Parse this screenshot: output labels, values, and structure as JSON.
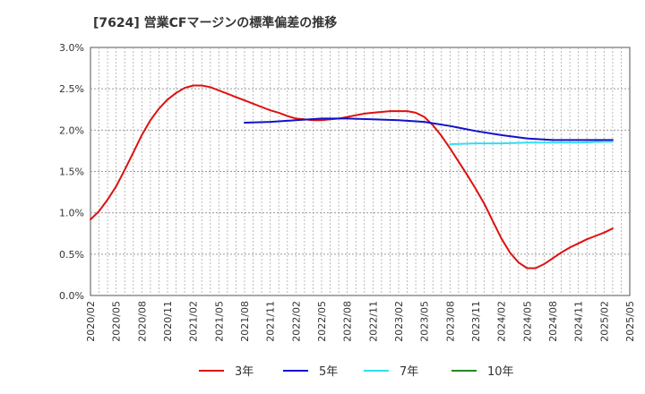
{
  "chart_data": {
    "type": "line",
    "title": "[7624]  営業CFマージンの標準偏差の推移",
    "xlabel": "",
    "ylabel": "",
    "x_ticks": [
      "2020/02",
      "2020/05",
      "2020/08",
      "2020/11",
      "2021/02",
      "2021/05",
      "2021/08",
      "2021/11",
      "2022/02",
      "2022/05",
      "2022/08",
      "2022/11",
      "2023/02",
      "2023/05",
      "2023/08",
      "2023/11",
      "2024/02",
      "2024/05",
      "2024/08",
      "2024/11",
      "2025/02",
      "2025/05"
    ],
    "y_ticks": [
      "0.0%",
      "0.5%",
      "1.0%",
      "1.5%",
      "2.0%",
      "2.5%",
      "3.0%"
    ],
    "ylim": [
      0,
      3.0
    ],
    "grid": true,
    "legend_position": "bottom",
    "series": [
      {
        "name": "3年",
        "color": "#dd1111",
        "points": [
          [
            "2020/02",
            0.92
          ],
          [
            "2020/03",
            1.02
          ],
          [
            "2020/04",
            1.16
          ],
          [
            "2020/05",
            1.32
          ],
          [
            "2020/06",
            1.52
          ],
          [
            "2020/07",
            1.73
          ],
          [
            "2020/08",
            1.94
          ],
          [
            "2020/09",
            2.12
          ],
          [
            "2020/10",
            2.26
          ],
          [
            "2020/11",
            2.37
          ],
          [
            "2020/12",
            2.45
          ],
          [
            "2021/01",
            2.51
          ],
          [
            "2021/02",
            2.54
          ],
          [
            "2021/03",
            2.54
          ],
          [
            "2021/04",
            2.52
          ],
          [
            "2021/05",
            2.48
          ],
          [
            "2021/06",
            2.44
          ],
          [
            "2021/07",
            2.4
          ],
          [
            "2021/08",
            2.36
          ],
          [
            "2021/09",
            2.32
          ],
          [
            "2021/10",
            2.28
          ],
          [
            "2021/11",
            2.24
          ],
          [
            "2021/12",
            2.21
          ],
          [
            "2022/01",
            2.17
          ],
          [
            "2022/02",
            2.14
          ],
          [
            "2022/03",
            2.13
          ],
          [
            "2022/04",
            2.12
          ],
          [
            "2022/05",
            2.12
          ],
          [
            "2022/06",
            2.13
          ],
          [
            "2022/07",
            2.14
          ],
          [
            "2022/08",
            2.16
          ],
          [
            "2022/09",
            2.18
          ],
          [
            "2022/10",
            2.2
          ],
          [
            "2022/11",
            2.21
          ],
          [
            "2022/12",
            2.22
          ],
          [
            "2023/01",
            2.23
          ],
          [
            "2023/02",
            2.23
          ],
          [
            "2023/03",
            2.23
          ],
          [
            "2023/04",
            2.21
          ],
          [
            "2023/05",
            2.16
          ],
          [
            "2023/06",
            2.06
          ],
          [
            "2023/07",
            1.93
          ],
          [
            "2023/08",
            1.78
          ],
          [
            "2023/09",
            1.62
          ],
          [
            "2023/10",
            1.46
          ],
          [
            "2023/11",
            1.29
          ],
          [
            "2023/12",
            1.11
          ],
          [
            "2024/01",
            0.9
          ],
          [
            "2024/02",
            0.69
          ],
          [
            "2024/03",
            0.52
          ],
          [
            "2024/04",
            0.4
          ],
          [
            "2024/05",
            0.33
          ],
          [
            "2024/06",
            0.33
          ],
          [
            "2024/07",
            0.38
          ],
          [
            "2024/08",
            0.45
          ],
          [
            "2024/09",
            0.52
          ],
          [
            "2024/10",
            0.58
          ],
          [
            "2024/11",
            0.63
          ],
          [
            "2024/12",
            0.68
          ],
          [
            "2025/01",
            0.72
          ],
          [
            "2025/02",
            0.76
          ],
          [
            "2025/03",
            0.81
          ]
        ]
      },
      {
        "name": "5年",
        "color": "#1111cc",
        "points": [
          [
            "2021/08",
            2.09
          ],
          [
            "2021/11",
            2.1
          ],
          [
            "2022/02",
            2.12
          ],
          [
            "2022/05",
            2.14
          ],
          [
            "2022/08",
            2.14
          ],
          [
            "2022/11",
            2.13
          ],
          [
            "2023/02",
            2.12
          ],
          [
            "2023/05",
            2.1
          ],
          [
            "2023/08",
            2.05
          ],
          [
            "2023/11",
            1.99
          ],
          [
            "2024/02",
            1.94
          ],
          [
            "2024/05",
            1.9
          ],
          [
            "2024/08",
            1.88
          ],
          [
            "2024/11",
            1.88
          ],
          [
            "2025/02",
            1.88
          ],
          [
            "2025/03",
            1.88
          ]
        ]
      },
      {
        "name": "7年",
        "color": "#33ddee",
        "points": [
          [
            "2023/08",
            1.83
          ],
          [
            "2023/11",
            1.84
          ],
          [
            "2024/02",
            1.84
          ],
          [
            "2024/05",
            1.85
          ],
          [
            "2024/08",
            1.85
          ],
          [
            "2024/11",
            1.85
          ],
          [
            "2025/02",
            1.86
          ],
          [
            "2025/03",
            1.86
          ]
        ]
      },
      {
        "name": "10年",
        "color": "#228822",
        "points": []
      }
    ]
  }
}
